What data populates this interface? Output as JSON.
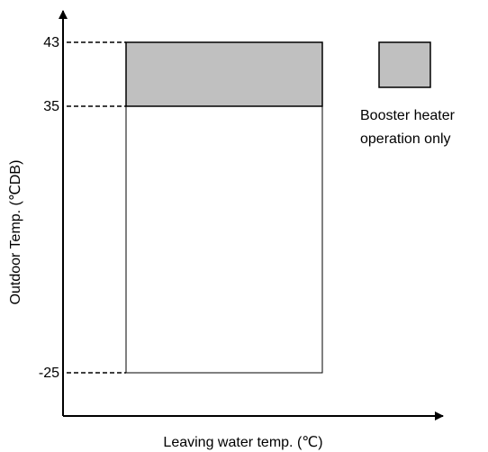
{
  "y_axis": {
    "title": "Outdoor Temp. (℃DB)",
    "labels": [
      "43",
      "35",
      "-25"
    ]
  },
  "x_axis": {
    "title": "Leaving water temp. (℃)"
  },
  "legend": {
    "lines": [
      "Booster heater",
      "operation only"
    ]
  }
}
